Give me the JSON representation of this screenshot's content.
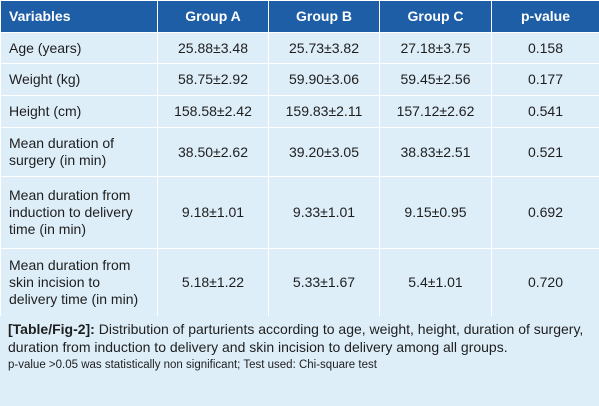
{
  "table": {
    "headers": [
      "Variables",
      "Group A",
      "Group B",
      "Group C",
      "p-value"
    ],
    "rows": [
      {
        "label": [
          "Age (years)"
        ],
        "cells": [
          "25.88±3.48",
          "25.73±3.82",
          "27.18±3.75",
          "0.158"
        ]
      },
      {
        "label": [
          "Weight (kg)"
        ],
        "cells": [
          "58.75±2.92",
          "59.90±3.06",
          "59.45±2.56",
          "0.177"
        ]
      },
      {
        "label": [
          "Height (cm)"
        ],
        "cells": [
          "158.58±2.42",
          "159.83±2.11",
          "157.12±2.62",
          "0.541"
        ]
      },
      {
        "label": [
          "Mean duration of",
          "surgery (in min)"
        ],
        "cells": [
          "38.50±2.62",
          "39.20±3.05",
          "38.83±2.51",
          "0.521"
        ]
      },
      {
        "label": [
          "Mean duration from",
          "induction to delivery",
          "time (in min)"
        ],
        "cells": [
          "9.18±1.01",
          "9.33±1.01",
          "9.15±0.95",
          "0.692"
        ]
      },
      {
        "label": [
          "Mean duration from",
          "skin incision to",
          "delivery time (in min)"
        ],
        "cells": [
          "5.18±1.22",
          "5.33±1.67",
          "5.4±1.01",
          "0.720"
        ]
      }
    ]
  },
  "caption": {
    "ref": "[Table/Fig-2]:",
    "text": " Distribution of parturients according to age, weight, height, duration of surgery, duration from induction to delivery and skin incision to delivery among all groups.",
    "note": "p-value >0.05 was statistically non significant; Test used: Chi-square test"
  },
  "colors": {
    "header_bg": "#1d5ea6",
    "cell_bg": "#ddeef9",
    "grid_lines": "#ffffff"
  }
}
